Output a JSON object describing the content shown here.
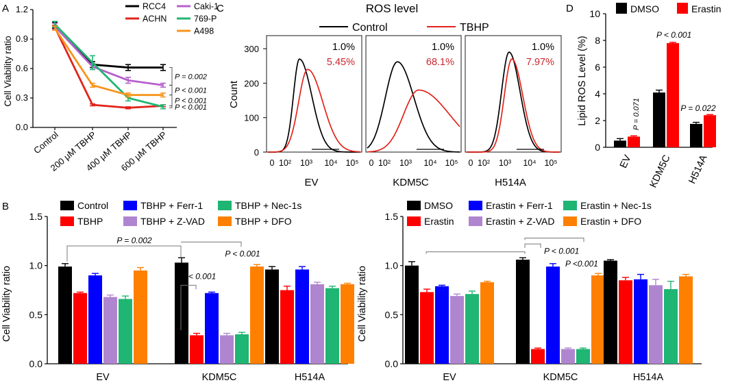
{
  "chart_data": [
    {
      "panel": "A",
      "type": "line",
      "ylabel": "Cell Viability ratio",
      "ylim": [
        0,
        1.2
      ],
      "yticks": [
        "0.0",
        "0.3",
        "0.6",
        "0.9",
        "1.2"
      ],
      "categories": [
        "Control",
        "200 μM TBHP",
        "400 μM TBHP",
        "600 μM TBHP"
      ],
      "series": [
        {
          "name": "RCC4",
          "color": "#000000",
          "values": [
            1.04,
            0.64,
            0.61,
            0.61
          ],
          "err": [
            0.03,
            0.03,
            0.03,
            0.03
          ]
        },
        {
          "name": "ACHN",
          "color": "#e2231a",
          "values": [
            1.02,
            0.23,
            0.2,
            0.22
          ],
          "err": [
            0.02,
            0.01,
            0.01,
            0.01
          ]
        },
        {
          "name": "Caki-1",
          "color": "#b660cd",
          "values": [
            1.03,
            0.62,
            0.48,
            0.43
          ],
          "err": [
            0.03,
            0.03,
            0.03,
            0.02
          ]
        },
        {
          "name": "769-P",
          "color": "#22b573",
          "values": [
            1.05,
            0.66,
            0.3,
            0.21
          ],
          "err": [
            0.03,
            0.07,
            0.03,
            0.02
          ]
        },
        {
          "name": "A498",
          "color": "#f7941d",
          "values": [
            1.01,
            0.43,
            0.33,
            0.33
          ],
          "err": [
            0.02,
            0.02,
            0.02,
            0.02
          ]
        }
      ],
      "annotations": [
        "P = 0.002",
        "P < 0.001",
        "P < 0.001",
        "P < 0.001"
      ]
    },
    {
      "panel": "C",
      "type": "histogram",
      "title": "ROS level",
      "ylabel": "Count",
      "yticks": [
        "0",
        "100",
        "200",
        "300"
      ],
      "legend": [
        {
          "name": "Control",
          "color": "#000000"
        },
        {
          "name": "TBHP",
          "color": "#e2231a"
        }
      ],
      "samples": [
        {
          "name": "EV",
          "control_pct": "1.0%",
          "tbhp_pct": "5.45%"
        },
        {
          "name": "KDM5C",
          "control_pct": "1.0%",
          "tbhp_pct": "68.1%"
        },
        {
          "name": "H514A",
          "control_pct": "1.0%",
          "tbhp_pct": "7.97%"
        }
      ]
    },
    {
      "panel": "D",
      "type": "bar",
      "ylabel": "Lipid ROS Level (%)",
      "ylim": [
        0,
        10
      ],
      "yticks": [
        "0",
        "2",
        "4",
        "6",
        "8",
        "10"
      ],
      "categories": [
        "EV",
        "KDM5C",
        "H514A"
      ],
      "series": [
        {
          "name": "DMSO",
          "color": "#000000",
          "values": [
            0.5,
            4.1,
            1.75
          ],
          "err": [
            0.15,
            0.18,
            0.12
          ]
        },
        {
          "name": "Erastin",
          "color": "#ff0000",
          "values": [
            0.8,
            7.8,
            2.4
          ],
          "err": [
            0.06,
            0.06,
            0.05
          ]
        }
      ],
      "annotations": [
        "P = 0.071",
        "P < 0.001",
        "P = 0.022"
      ]
    },
    {
      "panel": "B",
      "type": "bar",
      "ylabel": "Cell Viability ratio",
      "ylim": [
        0,
        1.5
      ],
      "yticks": [
        "0.0",
        "0.5",
        "1.0",
        "1.5"
      ],
      "categories": [
        "EV",
        "KDM5C",
        "H514A"
      ],
      "series": [
        {
          "name": "Control",
          "color": "#000000",
          "values": [
            0.99,
            1.03,
            0.96
          ],
          "err": [
            0.03,
            0.05,
            0.03
          ]
        },
        {
          "name": "TBHP",
          "color": "#ff0000",
          "values": [
            0.72,
            0.29,
            0.75
          ],
          "err": [
            0.01,
            0.02,
            0.04
          ]
        },
        {
          "name": "TBHP + Ferr-1",
          "color": "#0000ff",
          "values": [
            0.9,
            0.72,
            0.96
          ],
          "err": [
            0.02,
            0.01,
            0.03
          ]
        },
        {
          "name": "TBHP + Z-VAD",
          "color": "#b085d0",
          "values": [
            0.68,
            0.29,
            0.81
          ],
          "err": [
            0.02,
            0.02,
            0.02
          ]
        },
        {
          "name": "TBHP + Nec-1s",
          "color": "#1fb573",
          "values": [
            0.66,
            0.3,
            0.77
          ],
          "err": [
            0.03,
            0.02,
            0.02
          ]
        },
        {
          "name": "TBHP + DFO",
          "color": "#ff7f00",
          "values": [
            0.95,
            0.99,
            0.81
          ],
          "err": [
            0.03,
            0.02,
            0.01
          ]
        }
      ],
      "annotations": [
        "P = 0.002",
        "P < 0.001",
        "P < 0.001"
      ]
    },
    {
      "panel": "B2",
      "type": "bar",
      "ylabel": "Cell Viability ratio",
      "ylim": [
        0,
        1.5
      ],
      "yticks": [
        "0.0",
        "0.5",
        "1.0",
        "1.5"
      ],
      "categories": [
        "EV",
        "KDM5C",
        "H514A"
      ],
      "series": [
        {
          "name": "DMSO",
          "color": "#000000",
          "values": [
            1.0,
            1.06,
            1.05
          ],
          "err": [
            0.04,
            0.02,
            0.01
          ]
        },
        {
          "name": "Erastin",
          "color": "#ff0000",
          "values": [
            0.73,
            0.15,
            0.85
          ],
          "err": [
            0.03,
            0.01,
            0.03
          ]
        },
        {
          "name": "Erastin + Ferr-1",
          "color": "#0000ff",
          "values": [
            0.79,
            0.99,
            0.86
          ],
          "err": [
            0.01,
            0.03,
            0.05
          ]
        },
        {
          "name": "Erastin + Z-VAD",
          "color": "#b085d0",
          "values": [
            0.69,
            0.15,
            0.8
          ],
          "err": [
            0.02,
            0.01,
            0.06
          ]
        },
        {
          "name": "Erastin + Nec-1s",
          "color": "#1fb573",
          "values": [
            0.71,
            0.15,
            0.76
          ],
          "err": [
            0.03,
            0.01,
            0.08
          ]
        },
        {
          "name": "Erastin + DFO",
          "color": "#ff7f00",
          "values": [
            0.83,
            0.9,
            0.89
          ],
          "err": [
            0.01,
            0.02,
            0.02
          ]
        }
      ],
      "annotations": [
        "P < 0.001",
        "P < 0.001",
        "P <0.001"
      ]
    }
  ]
}
